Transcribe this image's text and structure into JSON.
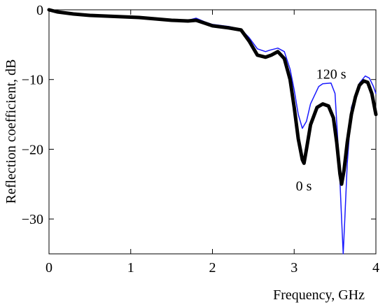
{
  "chart_data": {
    "type": "line",
    "xlabel": "Frequency, GHz",
    "ylabel": "Reflection coefficient, dB",
    "xlim": [
      0,
      4
    ],
    "ylim": [
      -35,
      0
    ],
    "x_ticks": [
      0,
      1,
      2,
      3,
      4
    ],
    "y_ticks": [
      0,
      -10,
      -20,
      -30
    ],
    "x_tick_labels": [
      "0",
      "1",
      "2",
      "3",
      "4"
    ],
    "y_tick_labels": [
      "0",
      "−10",
      "−20",
      "−30"
    ],
    "grid": false,
    "annotations": [
      {
        "text": "120 s",
        "x": 3.27,
        "y": -9.2
      },
      {
        "text": "0 s",
        "x": 3.02,
        "y": -25.2
      }
    ],
    "series": [
      {
        "color": "#1a1aff",
        "label_ref": "120 s",
        "points": [
          [
            0,
            0
          ],
          [
            0.1,
            -0.3
          ],
          [
            0.3,
            -0.5
          ],
          [
            0.5,
            -0.7
          ],
          [
            0.7,
            -0.8
          ],
          [
            0.9,
            -0.9
          ],
          [
            1.1,
            -1.0
          ],
          [
            1.3,
            -1.2
          ],
          [
            1.5,
            -1.4
          ],
          [
            1.7,
            -1.5
          ],
          [
            1.8,
            -1.2
          ],
          [
            1.9,
            -1.7
          ],
          [
            2.0,
            -2.1
          ],
          [
            2.2,
            -2.4
          ],
          [
            2.35,
            -2.8
          ],
          [
            2.45,
            -4.0
          ],
          [
            2.55,
            -5.6
          ],
          [
            2.65,
            -6.0
          ],
          [
            2.7,
            -5.8
          ],
          [
            2.8,
            -5.5
          ],
          [
            2.88,
            -6.0
          ],
          [
            2.95,
            -8.5
          ],
          [
            3.0,
            -11.5
          ],
          [
            3.05,
            -15.0
          ],
          [
            3.1,
            -17.0
          ],
          [
            3.15,
            -16.0
          ],
          [
            3.2,
            -13.5
          ],
          [
            3.3,
            -11.0
          ],
          [
            3.35,
            -10.6
          ],
          [
            3.45,
            -10.5
          ],
          [
            3.5,
            -12.0
          ],
          [
            3.55,
            -22.0
          ],
          [
            3.58,
            -30.0
          ],
          [
            3.6,
            -35.0
          ],
          [
            3.62,
            -30.0
          ],
          [
            3.65,
            -22.0
          ],
          [
            3.7,
            -14.0
          ],
          [
            3.8,
            -10.5
          ],
          [
            3.87,
            -9.5
          ],
          [
            3.92,
            -9.8
          ],
          [
            3.97,
            -11.0
          ],
          [
            4.0,
            -12.0
          ]
        ]
      },
      {
        "color": "#000000",
        "label_ref": "0 s",
        "points": [
          [
            0,
            0
          ],
          [
            0.1,
            -0.3
          ],
          [
            0.3,
            -0.6
          ],
          [
            0.5,
            -0.8
          ],
          [
            0.7,
            -0.9
          ],
          [
            0.9,
            -1.0
          ],
          [
            1.1,
            -1.1
          ],
          [
            1.3,
            -1.3
          ],
          [
            1.5,
            -1.5
          ],
          [
            1.7,
            -1.6
          ],
          [
            1.8,
            -1.5
          ],
          [
            1.9,
            -1.9
          ],
          [
            2.0,
            -2.3
          ],
          [
            2.2,
            -2.6
          ],
          [
            2.35,
            -2.9
          ],
          [
            2.45,
            -4.5
          ],
          [
            2.55,
            -6.5
          ],
          [
            2.65,
            -6.8
          ],
          [
            2.72,
            -6.5
          ],
          [
            2.8,
            -6.0
          ],
          [
            2.88,
            -7.0
          ],
          [
            2.95,
            -10.0
          ],
          [
            3.0,
            -14.0
          ],
          [
            3.05,
            -18.5
          ],
          [
            3.1,
            -21.5
          ],
          [
            3.12,
            -22.0
          ],
          [
            3.15,
            -20.0
          ],
          [
            3.2,
            -16.5
          ],
          [
            3.28,
            -14.0
          ],
          [
            3.35,
            -13.5
          ],
          [
            3.42,
            -13.8
          ],
          [
            3.48,
            -15.5
          ],
          [
            3.52,
            -19.0
          ],
          [
            3.56,
            -23.5
          ],
          [
            3.58,
            -25.0
          ],
          [
            3.61,
            -23.0
          ],
          [
            3.65,
            -19.0
          ],
          [
            3.7,
            -15.0
          ],
          [
            3.75,
            -12.5
          ],
          [
            3.8,
            -10.8
          ],
          [
            3.85,
            -10.2
          ],
          [
            3.9,
            -10.4
          ],
          [
            3.95,
            -12.0
          ],
          [
            4.0,
            -15.0
          ]
        ]
      }
    ]
  }
}
